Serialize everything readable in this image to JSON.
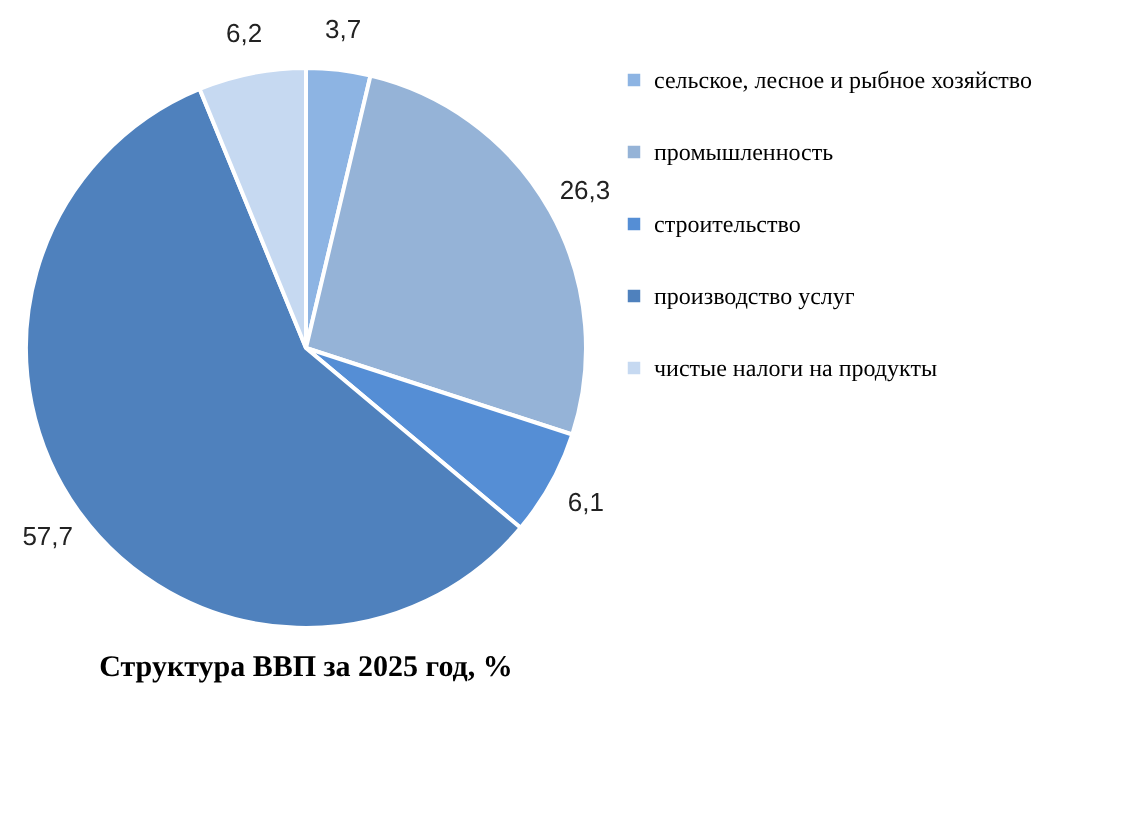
{
  "chart_data": {
    "type": "pie",
    "title": "Структура ВВП за 2025 год, %",
    "categories": [
      "сельское, лесное и рыбное хозяйство",
      "промышленность",
      "строительство",
      "производство услуг",
      "чистые налоги на продукты"
    ],
    "values": [
      3.7,
      26.3,
      6.1,
      57.7,
      6.2
    ],
    "colors": [
      "#8db4e3",
      "#95b3d7",
      "#558ed5",
      "#4f81bd",
      "#c6d9f1"
    ],
    "value_labels": [
      "3,7",
      "26,3",
      "6,1",
      "57,7",
      "6,2"
    ],
    "legend": "right"
  }
}
